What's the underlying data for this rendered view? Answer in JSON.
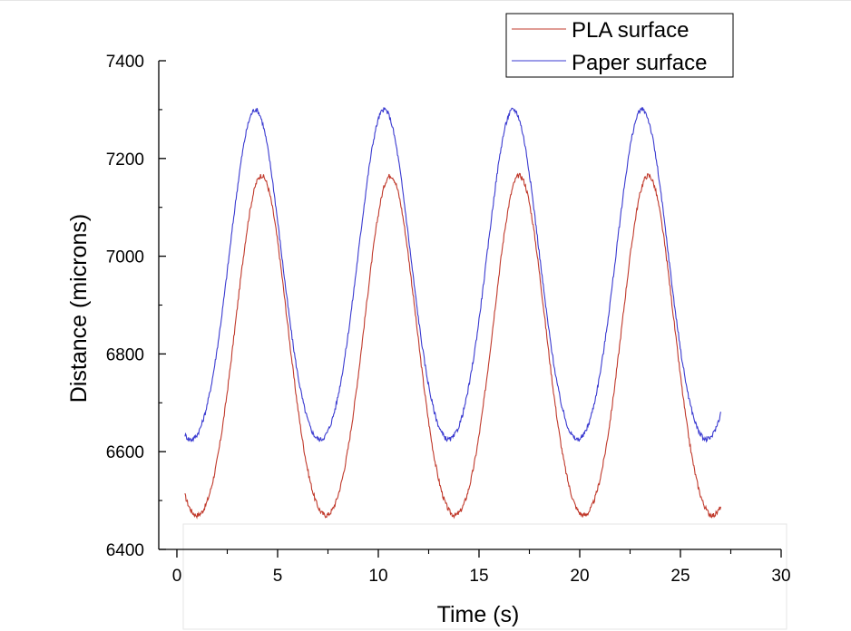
{
  "chart_data": {
    "type": "line",
    "xlabel": "Time (s)",
    "ylabel": "Distance (microns)",
    "xlim": [
      -0.9,
      30
    ],
    "ylim": [
      6400,
      7400
    ],
    "x_ticks": [
      0,
      5,
      10,
      15,
      20,
      25,
      30
    ],
    "y_ticks": [
      6400,
      6600,
      6800,
      7000,
      7200,
      7400
    ],
    "grid": false,
    "legend_position": "top-right",
    "series": [
      {
        "name": "PLA surface",
        "color": "#c0392b",
        "period": 6.4,
        "peak_times": [
          4.2,
          10.6,
          17.0,
          23.4
        ],
        "min": 6470,
        "max": 7165,
        "x": [
          0.4,
          1.0,
          2.0,
          3.0,
          4.2,
          5.0,
          6.0,
          7.3,
          8.0,
          9.0,
          10.6,
          11.5,
          12.5,
          13.7,
          14.5,
          15.5,
          17.0,
          18.0,
          19.0,
          20.1,
          21.0,
          22.0,
          23.4,
          24.5,
          25.5,
          26.7,
          27.0
        ],
        "y": [
          6565,
          6475,
          6585,
          6900,
          7165,
          7020,
          6700,
          6470,
          6490,
          6760,
          7160,
          6940,
          6620,
          6470,
          6500,
          6780,
          7160,
          6920,
          6610,
          6475,
          6510,
          6790,
          7165,
          6940,
          6620,
          6475,
          6495
        ]
      },
      {
        "name": "Paper surface",
        "color": "#3a3ad0",
        "period": 6.4,
        "peak_times": [
          3.9,
          10.3,
          16.7,
          23.1
        ],
        "min": 6625,
        "max": 7300,
        "x": [
          0.4,
          0.9,
          1.8,
          2.8,
          3.9,
          4.9,
          5.9,
          7.1,
          8.0,
          9.0,
          10.3,
          11.3,
          12.3,
          13.5,
          14.5,
          15.5,
          16.7,
          17.7,
          18.7,
          19.9,
          20.9,
          21.9,
          23.1,
          24.1,
          25.1,
          26.5,
          27.0
        ],
        "y": [
          6660,
          6625,
          6770,
          7050,
          7300,
          7130,
          6830,
          6630,
          6690,
          6960,
          7300,
          7120,
          6810,
          6630,
          6690,
          6970,
          7300,
          7120,
          6810,
          6630,
          6690,
          6980,
          7300,
          7120,
          6810,
          6635,
          6665
        ]
      }
    ]
  }
}
